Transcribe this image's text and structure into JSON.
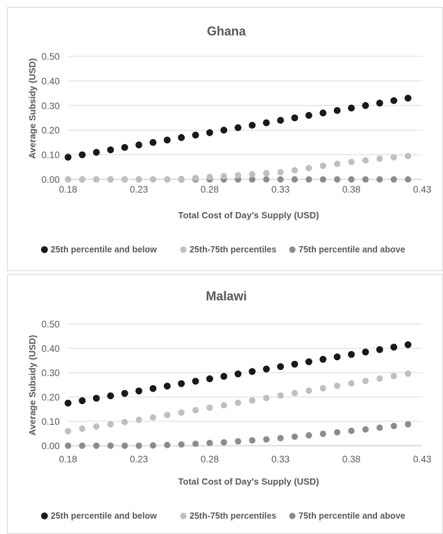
{
  "chart_data": [
    {
      "type": "scatter",
      "title": "Ghana",
      "xlabel": "Total Cost of Day's Supply (USD)",
      "ylabel": "Average Subsidy (USD)",
      "xlim": [
        0.18,
        0.43
      ],
      "ylim": [
        0,
        0.5
      ],
      "x_ticks": [
        "0.18",
        "0.23",
        "0.28",
        "0.33",
        "0.38",
        "0.43"
      ],
      "y_ticks": [
        "0.00",
        "0.10",
        "0.20",
        "0.30",
        "0.40",
        "0.50"
      ],
      "legend_position": "bottom",
      "grid": "horizontal",
      "x": [
        0.18,
        0.19,
        0.2,
        0.21,
        0.22,
        0.23,
        0.24,
        0.25,
        0.26,
        0.27,
        0.28,
        0.29,
        0.3,
        0.31,
        0.32,
        0.33,
        0.34,
        0.35,
        0.36,
        0.37,
        0.38,
        0.39,
        0.4,
        0.41,
        0.42
      ],
      "series": [
        {
          "name": "25th percentile and below",
          "color": "#1a1a1a",
          "values": [
            0.09,
            0.1,
            0.11,
            0.12,
            0.13,
            0.14,
            0.15,
            0.16,
            0.17,
            0.18,
            0.19,
            0.2,
            0.21,
            0.22,
            0.23,
            0.24,
            0.25,
            0.26,
            0.27,
            0.28,
            0.29,
            0.3,
            0.31,
            0.32,
            0.33
          ]
        },
        {
          "name": "25th-75th percentiles",
          "color": "#bfbfbf",
          "values": [
            0,
            0,
            0,
            0,
            0,
            0,
            0,
            0,
            0.002,
            0.006,
            0.01,
            0.013,
            0.017,
            0.021,
            0.025,
            0.029,
            0.037,
            0.046,
            0.055,
            0.063,
            0.071,
            0.077,
            0.084,
            0.09,
            0.095
          ]
        },
        {
          "name": "75th percentile and above",
          "color": "#8c8c8c",
          "values": [
            0,
            0,
            0,
            0,
            0,
            0,
            0,
            0,
            0,
            0,
            0,
            0,
            0,
            0,
            0,
            0,
            0,
            0,
            0,
            0,
            0,
            0,
            0,
            0,
            0
          ]
        }
      ]
    },
    {
      "type": "scatter",
      "title": "Malawi",
      "xlabel": "Total Cost of Day's Supply (USD)",
      "ylabel": "Average Subsidy (USD)",
      "xlim": [
        0.18,
        0.43
      ],
      "ylim": [
        0,
        0.5
      ],
      "x_ticks": [
        "0.18",
        "0.23",
        "0.28",
        "0.33",
        "0.38",
        "0.43"
      ],
      "y_ticks": [
        "0.00",
        "0.10",
        "0.20",
        "0.30",
        "0.40",
        "0.50"
      ],
      "legend_position": "bottom",
      "grid": "horizontal",
      "x": [
        0.18,
        0.19,
        0.2,
        0.21,
        0.22,
        0.23,
        0.24,
        0.25,
        0.26,
        0.27,
        0.28,
        0.29,
        0.3,
        0.31,
        0.32,
        0.33,
        0.34,
        0.35,
        0.36,
        0.37,
        0.38,
        0.39,
        0.4,
        0.41,
        0.42
      ],
      "series": [
        {
          "name": "25th percentile and below",
          "color": "#1a1a1a",
          "values": [
            0.175,
            0.185,
            0.195,
            0.205,
            0.215,
            0.225,
            0.235,
            0.245,
            0.255,
            0.265,
            0.275,
            0.285,
            0.295,
            0.305,
            0.315,
            0.325,
            0.335,
            0.345,
            0.355,
            0.365,
            0.375,
            0.385,
            0.395,
            0.405,
            0.415
          ]
        },
        {
          "name": "25th-75th percentiles",
          "color": "#bfbfbf",
          "values": [
            0.06,
            0.07,
            0.079,
            0.088,
            0.097,
            0.106,
            0.116,
            0.126,
            0.136,
            0.146,
            0.156,
            0.166,
            0.176,
            0.186,
            0.196,
            0.206,
            0.216,
            0.226,
            0.236,
            0.246,
            0.256,
            0.266,
            0.276,
            0.286,
            0.296
          ]
        },
        {
          "name": "75th percentile and above",
          "color": "#8c8c8c",
          "values": [
            0,
            0,
            0,
            0,
            0,
            0,
            0.001,
            0.003,
            0.005,
            0.008,
            0.011,
            0.014,
            0.018,
            0.022,
            0.026,
            0.031,
            0.037,
            0.043,
            0.049,
            0.055,
            0.061,
            0.067,
            0.074,
            0.081,
            0.088
          ]
        }
      ]
    }
  ]
}
